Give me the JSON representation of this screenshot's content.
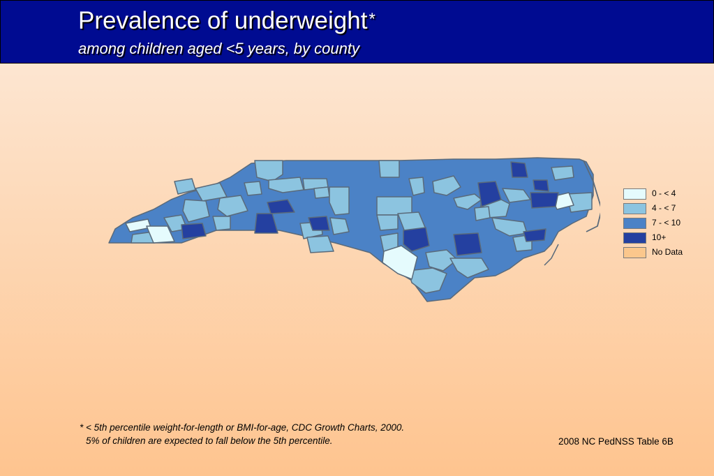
{
  "header": {
    "title": "Prevalence of underweight",
    "title_star": "*",
    "subtitle": "among children aged <5 years, by county"
  },
  "legend": {
    "items": [
      {
        "label": "0 - < 4",
        "color": "#e5fbfd"
      },
      {
        "label": "4 - < 7",
        "color": "#8cc4e0"
      },
      {
        "label": "7 - < 10",
        "color": "#4b82c6"
      },
      {
        "label": "10+",
        "color": "#2440a0"
      },
      {
        "label": "No Data",
        "color": "#fbc78c"
      }
    ]
  },
  "footnote": {
    "line1": "*  < 5th percentile weight-for-length or BMI-for-age, CDC Growth Charts, 2000.",
    "line2": "5% of children are expected to fall below the 5th percentile."
  },
  "source": "2008 NC PedNSS Table 6B",
  "map": {
    "region": "North Carolina",
    "border_color": "#5a6a7a"
  }
}
